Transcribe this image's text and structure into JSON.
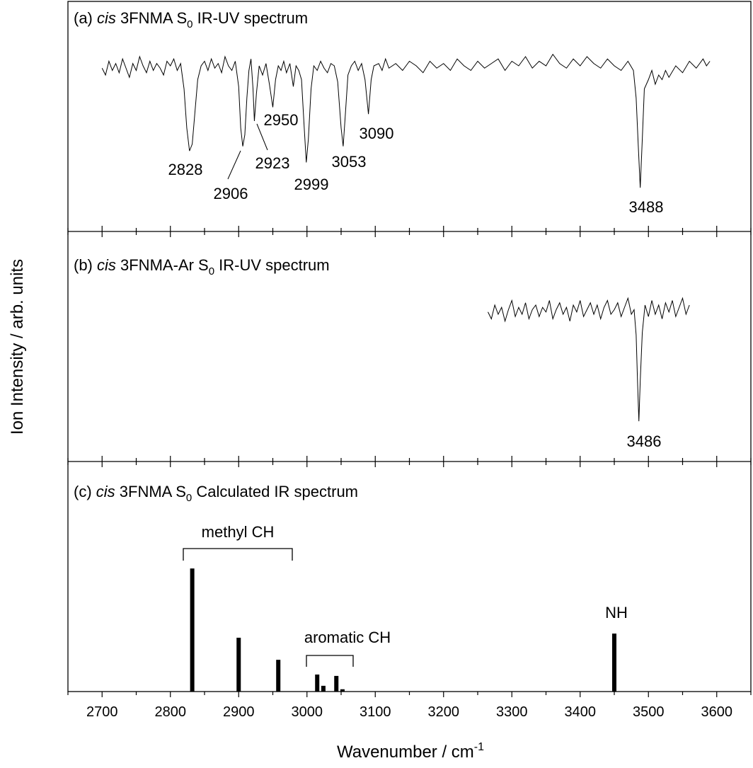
{
  "chart_data": [
    {
      "type": "line",
      "title": [
        "(a) ",
        "cis",
        " 3FNMA  S",
        "0",
        "  IR-UV spectrum"
      ],
      "ylabel": "Ion Intensity / arb. units",
      "color": "#000000",
      "ylim": [
        0,
        100
      ],
      "x": [
        2700,
        2705,
        2710,
        2715,
        2720,
        2725,
        2730,
        2735,
        2740,
        2745,
        2750,
        2755,
        2760,
        2765,
        2770,
        2775,
        2780,
        2785,
        2790,
        2795,
        2800,
        2805,
        2810,
        2815,
        2820,
        2824,
        2828,
        2832,
        2836,
        2840,
        2845,
        2850,
        2855,
        2860,
        2865,
        2870,
        2875,
        2880,
        2885,
        2890,
        2895,
        2900,
        2903,
        2906,
        2909,
        2912,
        2915,
        2918,
        2921,
        2923,
        2926,
        2930,
        2935,
        2940,
        2945,
        2950,
        2954,
        2958,
        2962,
        2966,
        2970,
        2975,
        2980,
        2984,
        2988,
        2992,
        2996,
        2999,
        3002,
        3006,
        3010,
        3015,
        3020,
        3025,
        3030,
        3035,
        3040,
        3045,
        3050,
        3053,
        3056,
        3060,
        3065,
        3070,
        3075,
        3080,
        3085,
        3090,
        3094,
        3098,
        3105,
        3110,
        3115,
        3120,
        3130,
        3140,
        3150,
        3160,
        3170,
        3180,
        3190,
        3200,
        3210,
        3220,
        3230,
        3240,
        3250,
        3260,
        3270,
        3280,
        3290,
        3300,
        3310,
        3320,
        3330,
        3340,
        3350,
        3360,
        3370,
        3380,
        3390,
        3400,
        3410,
        3420,
        3430,
        3440,
        3450,
        3460,
        3470,
        3478,
        3482,
        3485,
        3488,
        3491,
        3494,
        3500,
        3505,
        3510,
        3515,
        3520,
        3525,
        3530,
        3540,
        3550,
        3560,
        3570,
        3580,
        3585,
        3590
      ],
      "values": [
        71,
        68,
        74,
        70,
        73,
        69,
        75,
        71,
        67,
        73,
        70,
        76,
        72,
        69,
        74,
        70,
        73,
        71,
        68,
        74,
        72,
        75,
        70,
        73,
        62,
        45,
        35,
        38,
        52,
        66,
        72,
        74,
        70,
        75,
        71,
        73,
        69,
        76,
        72,
        70,
        74,
        63,
        45,
        37,
        42,
        58,
        70,
        75,
        62,
        48,
        60,
        72,
        68,
        73,
        64,
        54,
        66,
        72,
        70,
        74,
        69,
        73,
        63,
        72,
        70,
        66,
        45,
        30,
        40,
        62,
        72,
        70,
        74,
        71,
        69,
        73,
        72,
        65,
        45,
        37,
        50,
        68,
        72,
        74,
        70,
        73,
        66,
        51,
        66,
        72,
        73,
        70,
        75,
        71,
        73,
        70,
        74,
        72,
        69,
        74,
        71,
        73,
        70,
        75,
        72,
        70,
        74,
        71,
        73,
        75,
        70,
        74,
        72,
        76,
        71,
        74,
        72,
        77,
        73,
        71,
        75,
        72,
        76,
        73,
        71,
        75,
        72,
        70,
        74,
        70,
        58,
        38,
        19,
        40,
        62,
        66,
        70,
        64,
        68,
        66,
        70,
        67,
        72,
        69,
        74,
        71,
        75,
        72,
        74
      ],
      "peaks": [
        2828,
        2906,
        2923,
        2950,
        2999,
        3053,
        3090,
        3488
      ]
    },
    {
      "type": "line",
      "title": [
        "(b) ",
        "cis",
        " 3FNMA-Ar  S",
        "0",
        "  IR-UV spectrum"
      ],
      "color": "#000000",
      "ylim": [
        0,
        100
      ],
      "x": [
        3265,
        3270,
        3275,
        3280,
        3285,
        3290,
        3295,
        3300,
        3305,
        3310,
        3315,
        3320,
        3325,
        3330,
        3335,
        3340,
        3345,
        3350,
        3355,
        3360,
        3365,
        3370,
        3375,
        3380,
        3385,
        3390,
        3395,
        3400,
        3405,
        3410,
        3415,
        3420,
        3425,
        3430,
        3435,
        3440,
        3445,
        3450,
        3455,
        3460,
        3465,
        3470,
        3475,
        3479,
        3482,
        3484,
        3486,
        3488,
        3491,
        3495,
        3500,
        3505,
        3510,
        3515,
        3520,
        3525,
        3530,
        3535,
        3540,
        3545,
        3550,
        3555,
        3560
      ],
      "values": [
        65,
        62,
        68,
        64,
        67,
        61,
        66,
        70,
        63,
        67,
        64,
        69,
        62,
        66,
        68,
        63,
        67,
        65,
        70,
        62,
        66,
        69,
        64,
        67,
        61,
        68,
        65,
        70,
        63,
        66,
        69,
        64,
        68,
        62,
        67,
        70,
        64,
        66,
        69,
        63,
        67,
        71,
        64,
        66,
        55,
        35,
        17.5,
        35,
        56,
        68,
        63,
        70,
        64,
        68,
        62,
        69,
        65,
        70,
        63,
        67,
        71,
        64,
        68
      ],
      "peaks": [
        3486
      ]
    },
    {
      "type": "bar",
      "title": [
        "(c) ",
        "cis",
        " 3FNMA  S",
        "0",
        "  Calculated IR spectrum"
      ],
      "color": "#000000",
      "ylim": [
        0,
        100
      ],
      "x": [
        2832,
        2900,
        2958,
        3015,
        3024,
        3043,
        3052,
        3450
      ],
      "values": [
        53.5,
        23.4,
        13.8,
        7.4,
        2.5,
        6.8,
        1,
        25.2
      ],
      "annotations": [
        "methyl CH",
        "aromatic CH",
        "NH"
      ],
      "xlabel": [
        "Wavenumber / cm",
        "-1"
      ],
      "xlim": [
        2650,
        3650
      ],
      "xticks": [
        2700,
        2800,
        2900,
        3000,
        3100,
        3200,
        3300,
        3400,
        3500,
        3600
      ],
      "xminor_ticks": [
        2650,
        2750,
        2850,
        2950,
        3050,
        3150,
        3250,
        3350,
        3450,
        3550,
        3650
      ]
    }
  ]
}
